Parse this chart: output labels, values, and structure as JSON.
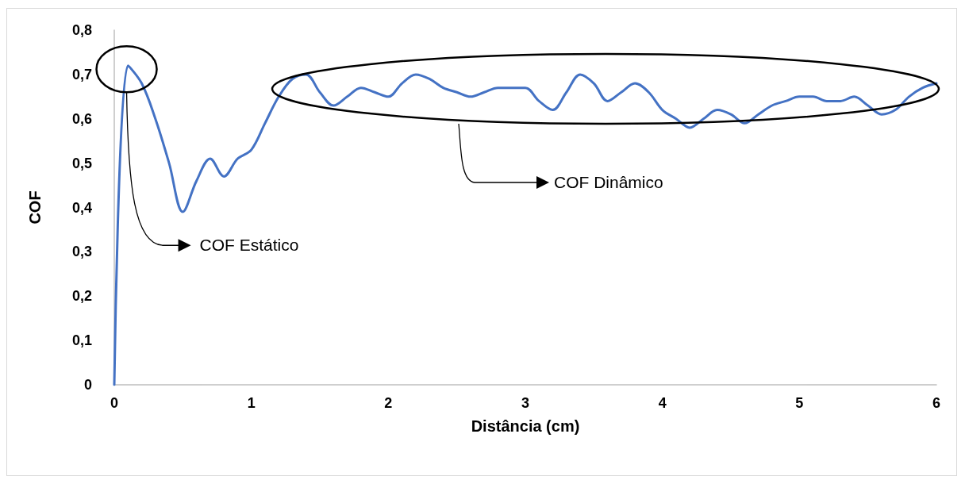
{
  "chart_data": {
    "type": "line",
    "xlabel": "Distância (cm)",
    "ylabel": "COF",
    "x": [
      0,
      0.1,
      0.2,
      0.3,
      0.4,
      0.5,
      0.6,
      0.7,
      0.8,
      0.9,
      1.0,
      1.1,
      1.2,
      1.3,
      1.4,
      1.5,
      1.6,
      1.7,
      1.8,
      1.9,
      2.0,
      2.1,
      2.2,
      2.3,
      2.4,
      2.5,
      2.6,
      2.7,
      2.8,
      2.9,
      3.0,
      3.1,
      3.2,
      3.3,
      3.4,
      3.5,
      3.6,
      3.7,
      3.8,
      3.9,
      4.0,
      4.1,
      4.2,
      4.3,
      4.4,
      4.5,
      4.6,
      4.7,
      4.8,
      4.9,
      5.0,
      5.1,
      5.2,
      5.3,
      5.4,
      5.5,
      5.6,
      5.7,
      5.8,
      5.9,
      6.0
    ],
    "series": [
      {
        "color": "#4472c4",
        "values": [
          0,
          0.72,
          0.68,
          0.6,
          0.5,
          0.39,
          0.46,
          0.51,
          0.47,
          0.51,
          0.53,
          0.59,
          0.65,
          0.69,
          0.7,
          0.66,
          0.63,
          0.65,
          0.67,
          0.66,
          0.65,
          0.68,
          0.7,
          0.69,
          0.67,
          0.66,
          0.65,
          0.66,
          0.67,
          0.67,
          0.67,
          0.64,
          0.62,
          0.66,
          0.7,
          0.68,
          0.64,
          0.66,
          0.68,
          0.66,
          0.62,
          0.6,
          0.58,
          0.6,
          0.62,
          0.61,
          0.59,
          0.61,
          0.63,
          0.64,
          0.65,
          0.65,
          0.64,
          0.64,
          0.65,
          0.63,
          0.61,
          0.62,
          0.65,
          0.67,
          0.68
        ]
      }
    ],
    "xlim": [
      0,
      6
    ],
    "xticks": [
      0,
      1,
      2,
      3,
      4,
      5,
      6
    ],
    "ylim": [
      0,
      0.8
    ],
    "yticks": [
      0,
      {
        "value": 0.1,
        "label": "0,1"
      },
      {
        "value": 0.2,
        "label": "0,2"
      },
      {
        "value": 0.3,
        "label": "0,3"
      },
      {
        "value": 0.4,
        "label": "0,4"
      },
      {
        "value": 0.5,
        "label": "0,5"
      },
      {
        "value": 0.6,
        "label": "0,6"
      },
      {
        "value": 0.7,
        "label": "0,7"
      },
      {
        "value": 0.8,
        "label": "0,8"
      }
    ],
    "grid": false,
    "marker": "none",
    "line_style": "solid",
    "annotations": [
      {
        "text": "COF Estático",
        "x": 0.09,
        "y": 0.66
      },
      "COF Dinâmico"
    ]
  }
}
